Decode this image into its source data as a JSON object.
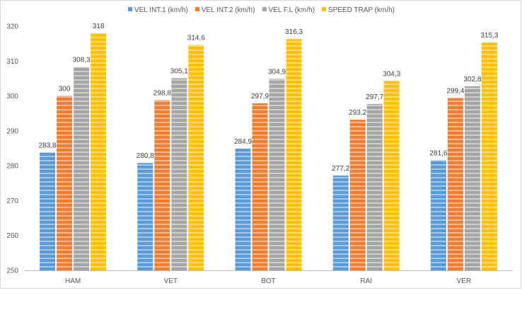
{
  "chart_data": {
    "type": "bar",
    "categories": [
      "HAM",
      "VET",
      "BOT",
      "RAI",
      "VER"
    ],
    "series": [
      {
        "name": "VEL INT.1 (km/h)",
        "values": [
          283.8,
          280.8,
          284.9,
          277.2,
          281.6
        ],
        "labels": [
          "283,8",
          "280,8",
          "284,9",
          "277,2",
          "281,6"
        ],
        "color": "#5b9bd5"
      },
      {
        "name": "VEL INT.2 (km/h)",
        "values": [
          300,
          298.8,
          297.9,
          293.2,
          299.4
        ],
        "labels": [
          "300",
          "298,8",
          "297,9",
          "293,2",
          "299,4"
        ],
        "color": "#ed7d31"
      },
      {
        "name": "VEL F.L (km/h)",
        "values": [
          308.3,
          305.1,
          304.9,
          297.7,
          302.8
        ],
        "labels": [
          "308,3",
          "305,1",
          "304,9",
          "297,7",
          "302,8"
        ],
        "color": "#a5a5a5"
      },
      {
        "name": "SPEED TRAP (km/h)",
        "values": [
          318,
          314.6,
          316.3,
          304.3,
          315.3
        ],
        "labels": [
          "318",
          "314,6",
          "316,3",
          "304,3",
          "315,3"
        ],
        "color": "#ffc000"
      }
    ],
    "yticks": [
      "250",
      "260",
      "270",
      "280",
      "290",
      "300",
      "310",
      "320"
    ],
    "ylim": [
      250,
      320
    ],
    "legend_position": "top",
    "grid": false
  }
}
